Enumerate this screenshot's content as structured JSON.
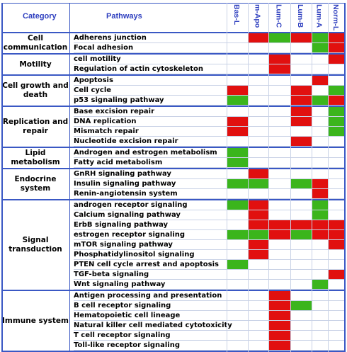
{
  "header": {
    "category": "Category",
    "pathways": "Pathways"
  },
  "subtypes": [
    "Bas-L",
    "m-Apo",
    "Lum-C",
    "Lum-B",
    "Lum-A",
    "Norm-L"
  ],
  "colors": {
    "up": "#e1100f",
    "down": "#3bb51c",
    "frame": "#3a58c4",
    "grid": "#c9d2e6",
    "header_text": "#2e3fbf"
  },
  "categories": [
    {
      "name": "Cell\ncommunication",
      "rows": [
        {
          "pathway": "Adherens junction",
          "cells": [
            "",
            "R",
            "G",
            "R",
            "G",
            "R"
          ]
        },
        {
          "pathway": "Focal adhesion",
          "cells": [
            "",
            "",
            "",
            "",
            "G",
            "R"
          ]
        }
      ]
    },
    {
      "name": "Motility",
      "rows": [
        {
          "pathway": "cell motility",
          "cells": [
            "",
            "",
            "R",
            "",
            "",
            "R"
          ]
        },
        {
          "pathway": "Regulation of actin cytoskeleton",
          "cells": [
            "",
            "",
            "R",
            "",
            "",
            ""
          ]
        }
      ]
    },
    {
      "name": "Cell growth and\ndeath",
      "rows": [
        {
          "pathway": "Apoptosis",
          "cells": [
            "",
            "",
            "",
            "",
            "R",
            ""
          ]
        },
        {
          "pathway": "Cell cycle",
          "cells": [
            "R",
            "",
            "",
            "R",
            "",
            "G"
          ]
        },
        {
          "pathway": "p53 signaling pathway",
          "cells": [
            "G",
            "",
            "",
            "R",
            "G",
            "R"
          ]
        }
      ]
    },
    {
      "name": "Replication and\nrepair",
      "rows": [
        {
          "pathway": "Base excision repair",
          "cells": [
            "",
            "",
            "",
            "R",
            "",
            "G"
          ]
        },
        {
          "pathway": "DNA replication",
          "cells": [
            "R",
            "",
            "",
            "R",
            "",
            "G"
          ]
        },
        {
          "pathway": "Mismatch repair",
          "cells": [
            "R",
            "",
            "",
            "",
            "",
            "G"
          ]
        },
        {
          "pathway": "Nucleotide excision repair",
          "cells": [
            "",
            "",
            "",
            "R",
            "",
            ""
          ]
        }
      ]
    },
    {
      "name": "Lipid metabolism",
      "rows": [
        {
          "pathway": "Androgen and estrogen metabolism",
          "cells": [
            "G",
            "",
            "",
            "",
            "",
            ""
          ]
        },
        {
          "pathway": "Fatty acid metabolism",
          "cells": [
            "G",
            "",
            "",
            "",
            "",
            ""
          ]
        }
      ]
    },
    {
      "name": "Endocrine system",
      "rows": [
        {
          "pathway": "GnRH signaling pathway",
          "cells": [
            "",
            "R",
            "",
            "",
            "",
            ""
          ]
        },
        {
          "pathway": "Insulin signaling pathway",
          "cells": [
            "G",
            "G",
            "",
            "G",
            "R",
            ""
          ]
        },
        {
          "pathway": "Renin-angiotensin system",
          "cells": [
            "",
            "",
            "",
            "",
            "R",
            ""
          ]
        }
      ]
    },
    {
      "name": "Signal\ntransduction",
      "rows": [
        {
          "pathway": "androgen receptor signaling",
          "cells": [
            "G",
            "R",
            "",
            "",
            "G",
            ""
          ]
        },
        {
          "pathway": "Calcium signaling pathway",
          "cells": [
            "",
            "R",
            "",
            "",
            "G",
            ""
          ]
        },
        {
          "pathway": "ErbB signaling pathway",
          "cells": [
            "",
            "R",
            "R",
            "R",
            "R",
            "R"
          ]
        },
        {
          "pathway": "estrogen receptor signaling",
          "cells": [
            "G",
            "G",
            "R",
            "G",
            "R",
            "R"
          ]
        },
        {
          "pathway": "mTOR signaling pathway",
          "cells": [
            "",
            "R",
            "",
            "",
            "",
            "R"
          ]
        },
        {
          "pathway": "Phosphatidylinositol signaling",
          "cells": [
            "",
            "R",
            "",
            "",
            "",
            ""
          ]
        },
        {
          "pathway": "PTEN cell cycle arrest and apoptosis",
          "cells": [
            "G",
            "",
            "",
            "",
            "",
            ""
          ]
        },
        {
          "pathway": "TGF-beta signaling",
          "cells": [
            "",
            "",
            "",
            "",
            "",
            "R"
          ]
        },
        {
          "pathway": "Wnt signaling pathway",
          "cells": [
            "",
            "",
            "",
            "",
            "G",
            ""
          ]
        }
      ]
    },
    {
      "name": "Immune system",
      "rows": [
        {
          "pathway": "Antigen processing and presentation",
          "cells": [
            "",
            "",
            "R",
            "",
            "",
            ""
          ]
        },
        {
          "pathway": "B cell receptor signaling",
          "cells": [
            "",
            "",
            "R",
            "G",
            "",
            ""
          ]
        },
        {
          "pathway": "Hematopoietic cell lineage",
          "cells": [
            "",
            "",
            "R",
            "",
            "",
            ""
          ]
        },
        {
          "pathway": "Natural killer cell mediated cytotoxicity",
          "cells": [
            "",
            "",
            "R",
            "",
            "",
            ""
          ]
        },
        {
          "pathway": "T cell receptor signaling",
          "cells": [
            "",
            "",
            "R",
            "",
            "",
            ""
          ]
        },
        {
          "pathway": "Toll-like receptor signaling",
          "cells": [
            "",
            "",
            "R",
            "",
            "",
            ""
          ]
        }
      ]
    }
  ]
}
